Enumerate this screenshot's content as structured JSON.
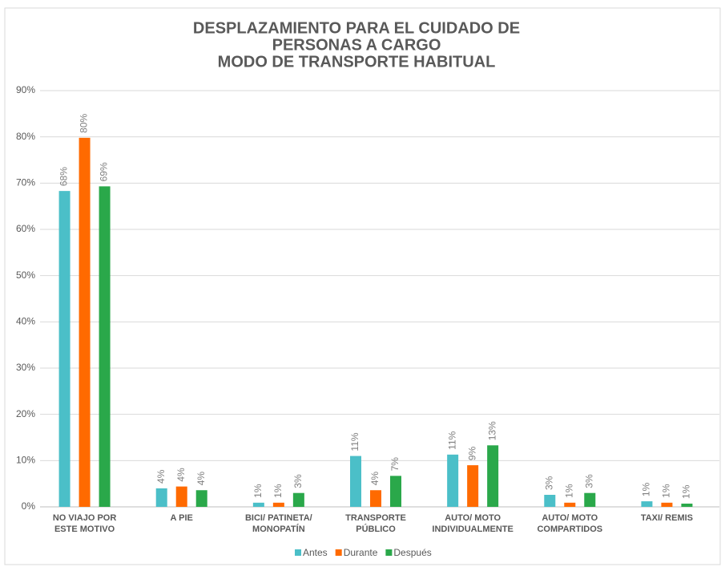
{
  "chart_data": {
    "type": "bar",
    "title": [
      "DESPLAZAMIENTO PARA EL CUIDADO DE",
      "PERSONAS A CARGO",
      "MODO DE TRANSPORTE HABITUAL"
    ],
    "categories": [
      [
        "NO VIAJO POR",
        "ESTE MOTIVO"
      ],
      [
        "A PIE"
      ],
      [
        "BICI/ PATINETA/",
        "MONOPATÍN"
      ],
      [
        "TRANSPORTE",
        "PÚBLICO"
      ],
      [
        "AUTO/ MOTO",
        "INDIVIDUALMENTE"
      ],
      [
        "AUTO/ MOTO",
        "COMPARTIDOS"
      ],
      [
        "TAXI/ REMIS"
      ]
    ],
    "series": [
      {
        "name": "Antes",
        "color": "#4bbfc8",
        "values": [
          68.3,
          4,
          0.9,
          11,
          11.3,
          2.6,
          1.2
        ],
        "value_labels": [
          "68%",
          "4%",
          "1%",
          "11%",
          "11%",
          "3%",
          "1%"
        ]
      },
      {
        "name": "Durante",
        "color": "#ff6a00",
        "values": [
          79.8,
          4.4,
          0.9,
          3.6,
          9.0,
          0.9,
          0.9
        ],
        "value_labels": [
          "80%",
          "4%",
          "1%",
          "4%",
          "9%",
          "1%",
          "1%"
        ]
      },
      {
        "name": "Después",
        "color": "#2aa84a",
        "values": [
          69.3,
          3.6,
          3.0,
          6.7,
          13.3,
          3.0,
          0.7
        ],
        "value_labels": [
          "69%",
          "4%",
          "3%",
          "7%",
          "13%",
          "3%",
          "1%"
        ]
      }
    ],
    "ylim": [
      0,
      90
    ],
    "yticks": [
      {
        "value": 0,
        "label": "0%"
      },
      {
        "value": 10,
        "label": "10%"
      },
      {
        "value": 20,
        "label": "20%"
      },
      {
        "value": 30,
        "label": "30%"
      },
      {
        "value": 40,
        "label": "40%"
      },
      {
        "value": 50,
        "label": "50%"
      },
      {
        "value": 60,
        "label": "60%"
      },
      {
        "value": 70,
        "label": "70%"
      },
      {
        "value": 80,
        "label": "80%"
      },
      {
        "value": 90,
        "label": "90%"
      }
    ],
    "grid": true,
    "legend": "bottom"
  }
}
